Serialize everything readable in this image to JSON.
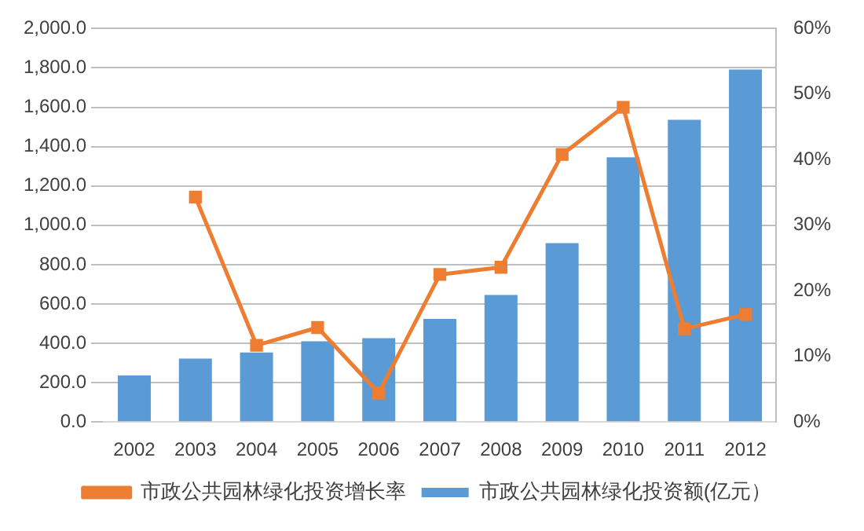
{
  "chart_data": {
    "type": "bar",
    "categories": [
      "2002",
      "2003",
      "2004",
      "2005",
      "2006",
      "2007",
      "2008",
      "2009",
      "2010",
      "2011",
      "2012"
    ],
    "series": [
      {
        "name": "市政公共园林绿化投资额(亿元）",
        "color": "#5b9bd5",
        "values": [
          236,
          322,
          353,
          410,
          426,
          524,
          646,
          909,
          1346,
          1536,
          1792
        ]
      },
      {
        "name": "市政公共园林绿化投资增长率",
        "type": "line",
        "axis": "y2",
        "color": "#ed7d31",
        "marker": "square",
        "values": [
          null,
          34.3,
          11.7,
          14.4,
          4.4,
          22.5,
          23.6,
          40.8,
          48.0,
          14.2,
          16.4
        ]
      }
    ],
    "ylim": [
      0,
      2000
    ],
    "yticks": [
      {
        "value": 0,
        "label": "0.0"
      },
      {
        "value": 200,
        "label": "200.0"
      },
      {
        "value": 400,
        "label": "400.0"
      },
      {
        "value": 600,
        "label": "600.0"
      },
      {
        "value": 800,
        "label": "800.0"
      },
      {
        "value": 1000,
        "label": "1,000.0"
      },
      {
        "value": 1200,
        "label": "1,200.0"
      },
      {
        "value": 1400,
        "label": "1,400.0"
      },
      {
        "value": 1600,
        "label": "1,600.0"
      },
      {
        "value": 1800,
        "label": "1,800.0"
      },
      {
        "value": 2000,
        "label": "2,000.0"
      }
    ],
    "y2lim": [
      0,
      60
    ],
    "y2ticks": [
      {
        "value": 0,
        "label": "0%"
      },
      {
        "value": 10,
        "label": "10%"
      },
      {
        "value": 20,
        "label": "20%"
      },
      {
        "value": 30,
        "label": "30%"
      },
      {
        "value": 40,
        "label": "40%"
      },
      {
        "value": 50,
        "label": "50%"
      },
      {
        "value": 60,
        "label": "60%"
      }
    ],
    "grid": "y",
    "legend": "bottom"
  }
}
